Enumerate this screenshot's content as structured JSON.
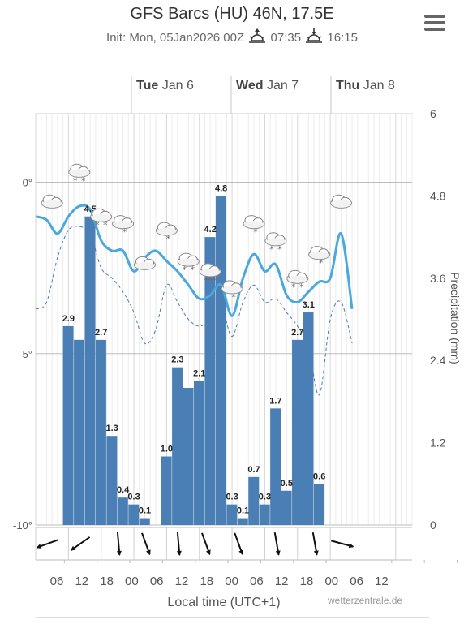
{
  "header": {
    "title": "GFS Barcs (HU) 46N, 17.5E",
    "init": "Init: Mon, 05Jan2026 00Z",
    "sunrise": "07:35",
    "sunset": "16:15",
    "sunrise_icon": "sunrise-icon",
    "sunset_icon": "sunset-icon",
    "menu_icon": "hamburger-menu-icon"
  },
  "footer": {
    "xlabel": "Local time (UTC+1)",
    "credits": "wetterzentrale.de"
  },
  "colors": {
    "precip_bar": "#4a7fb5",
    "temp_line": "#4aa8dc",
    "dew_line": "#4a7fb5",
    "grid": "#e3e3e3"
  },
  "chart_data": {
    "type": "bar",
    "day_labels": [
      {
        "day": "Tue",
        "date": "Jan 6"
      },
      {
        "day": "Wed",
        "date": "Jan 7"
      },
      {
        "day": "Thu",
        "date": "Jan 8"
      }
    ],
    "x_ticks": [
      "06",
      "12",
      "18",
      "00",
      "06",
      "12",
      "18",
      "00",
      "06",
      "12",
      "18",
      "00",
      "06",
      "12"
    ],
    "temp_axis": {
      "ticks": [
        "0°",
        "-5°",
        "-10°"
      ],
      "values": [
        0,
        -5,
        -10
      ],
      "range": [
        -10,
        2
      ]
    },
    "precip_axis": {
      "label": "Precipitation (mm)",
      "ticks": [
        "6",
        "4.8",
        "3.6",
        "2.4",
        "1.2",
        "0"
      ],
      "values": [
        6,
        4.8,
        3.6,
        2.4,
        1.2,
        0
      ],
      "range": [
        0,
        6
      ]
    },
    "time_range_hours": [
      0,
      69
    ],
    "precip_bars": [
      {
        "t": 6,
        "v": 2.9,
        "label": "2.9"
      },
      {
        "t": 8,
        "v": 2.7
      },
      {
        "t": 10,
        "v": 4.5,
        "label": "4.5"
      },
      {
        "t": 12,
        "v": 2.7,
        "label": "2.7"
      },
      {
        "t": 14,
        "v": 1.3,
        "label": "1.3"
      },
      {
        "t": 16,
        "v": 0.4,
        "label": "0.4"
      },
      {
        "t": 18,
        "v": 0.3,
        "label": "0.3"
      },
      {
        "t": 20,
        "v": 0.1,
        "label": "0.1"
      },
      {
        "t": 24,
        "v": 1.0,
        "label": "1.0"
      },
      {
        "t": 26,
        "v": 2.3,
        "label": "2.3"
      },
      {
        "t": 28,
        "v": 2.0
      },
      {
        "t": 30,
        "v": 2.1,
        "label": "2.1"
      },
      {
        "t": 32,
        "v": 4.2,
        "label": "4.2"
      },
      {
        "t": 34,
        "v": 4.8,
        "label": "4.8"
      },
      {
        "t": 36,
        "v": 0.3,
        "label": "0.3"
      },
      {
        "t": 38,
        "v": 0.1,
        "label": "0.1"
      },
      {
        "t": 40,
        "v": 0.7,
        "label": "0.7"
      },
      {
        "t": 42,
        "v": 0.3,
        "label": "0.3"
      },
      {
        "t": 44,
        "v": 1.7,
        "label": "1.7"
      },
      {
        "t": 46,
        "v": 0.5,
        "label": "0.5"
      },
      {
        "t": 48,
        "v": 2.7,
        "label": "2.7"
      },
      {
        "t": 50,
        "v": 3.1,
        "label": "3.1"
      },
      {
        "t": 52,
        "v": 0.6,
        "label": "0.6"
      }
    ],
    "temperature": [
      [
        0,
        -1.0
      ],
      [
        2,
        -1.1
      ],
      [
        4,
        -1.5
      ],
      [
        6,
        -1.0
      ],
      [
        8,
        -0.7
      ],
      [
        10,
        -0.8
      ],
      [
        12,
        -1.7
      ],
      [
        14,
        -2.0
      ],
      [
        16,
        -2.0
      ],
      [
        18,
        -2.6
      ],
      [
        20,
        -2.2
      ],
      [
        22,
        -2.0
      ],
      [
        24,
        -2.3
      ],
      [
        26,
        -2.6
      ],
      [
        28,
        -3.0
      ],
      [
        30,
        -3.4
      ],
      [
        32,
        -3.3
      ],
      [
        34,
        -3.0
      ],
      [
        36,
        -3.9
      ],
      [
        38,
        -2.8
      ],
      [
        40,
        -2.1
      ],
      [
        42,
        -2.6
      ],
      [
        44,
        -2.4
      ],
      [
        46,
        -3.3
      ],
      [
        48,
        -3.5
      ],
      [
        50,
        -3.2
      ],
      [
        52,
        -2.9
      ],
      [
        54,
        -2.8
      ],
      [
        56,
        -1.5
      ],
      [
        58,
        -3.7
      ]
    ],
    "dewpoint": [
      [
        0,
        -3.7
      ],
      [
        2,
        -3.5
      ],
      [
        4,
        -2.2
      ],
      [
        6,
        -1.4
      ],
      [
        8,
        -1.3
      ],
      [
        10,
        -1.5
      ],
      [
        12,
        -2.5
      ],
      [
        14,
        -2.8
      ],
      [
        16,
        -3.2
      ],
      [
        18,
        -3.8
      ],
      [
        20,
        -4.7
      ],
      [
        22,
        -4.3
      ],
      [
        24,
        -3.0
      ],
      [
        26,
        -3.5
      ],
      [
        28,
        -4.0
      ],
      [
        30,
        -4.2
      ],
      [
        32,
        -4.0
      ],
      [
        34,
        -3.6
      ],
      [
        36,
        -4.5
      ],
      [
        38,
        -3.5
      ],
      [
        40,
        -3.0
      ],
      [
        42,
        -3.5
      ],
      [
        44,
        -3.4
      ],
      [
        46,
        -3.8
      ],
      [
        48,
        -4.2
      ],
      [
        50,
        -4.8
      ],
      [
        52,
        -6.2
      ],
      [
        54,
        -4.0
      ],
      [
        56,
        -3.5
      ],
      [
        58,
        -4.7
      ]
    ],
    "weather_icons": [
      {
        "t": 3,
        "temp": -0.8,
        "icon": "cloud-icon"
      },
      {
        "t": 8,
        "temp": 0.1,
        "icon": "snow-icon"
      },
      {
        "t": 12,
        "temp": -1.2,
        "icon": "snow-icon"
      },
      {
        "t": 16,
        "temp": -1.4,
        "icon": "light-snow-icon"
      },
      {
        "t": 20,
        "temp": -2.6,
        "icon": "cloud-icon"
      },
      {
        "t": 24,
        "temp": -1.6,
        "icon": "light-snow-icon"
      },
      {
        "t": 28,
        "temp": -2.5,
        "icon": "snow-icon"
      },
      {
        "t": 32,
        "temp": -2.8,
        "icon": "heavy-snow-icon"
      },
      {
        "t": 36,
        "temp": -3.3,
        "icon": "light-snow-icon"
      },
      {
        "t": 40,
        "temp": -1.4,
        "icon": "light-snow-icon"
      },
      {
        "t": 44,
        "temp": -1.9,
        "icon": "snow-icon"
      },
      {
        "t": 48,
        "temp": -3.0,
        "icon": "snow-icon"
      },
      {
        "t": 52,
        "temp": -2.3,
        "icon": "light-snow-icon"
      },
      {
        "t": 56,
        "temp": -0.8,
        "icon": "cloud-icon"
      }
    ],
    "wind_arrows": [
      {
        "t": 1,
        "dir": 70
      },
      {
        "t": 7,
        "dir": 55
      },
      {
        "t": 14,
        "dir": 355
      },
      {
        "t": 19,
        "dir": 340
      },
      {
        "t": 25,
        "dir": 355
      },
      {
        "t": 30,
        "dir": 340
      },
      {
        "t": 36,
        "dir": 340
      },
      {
        "t": 43,
        "dir": 350
      },
      {
        "t": 50,
        "dir": 350
      },
      {
        "t": 55,
        "dir": 285
      }
    ]
  }
}
